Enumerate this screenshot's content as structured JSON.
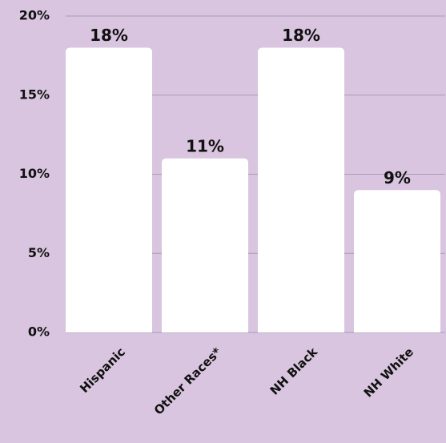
{
  "chart_data": {
    "type": "bar",
    "categories": [
      "Hispanic",
      "Other Races*",
      "NH Black",
      "NH White"
    ],
    "values": [
      18,
      11,
      18,
      9
    ],
    "value_labels": [
      "18%",
      "11%",
      "18%",
      "9%"
    ],
    "color": "#ffffff",
    "ylim": [
      0,
      20
    ],
    "yticks": [
      {
        "value": 0,
        "label": "0%"
      },
      {
        "value": 5,
        "label": "5%"
      },
      {
        "value": 10,
        "label": "10%"
      },
      {
        "value": 15,
        "label": "15%"
      },
      {
        "value": 20,
        "label": "20%"
      }
    ],
    "grid": true
  }
}
